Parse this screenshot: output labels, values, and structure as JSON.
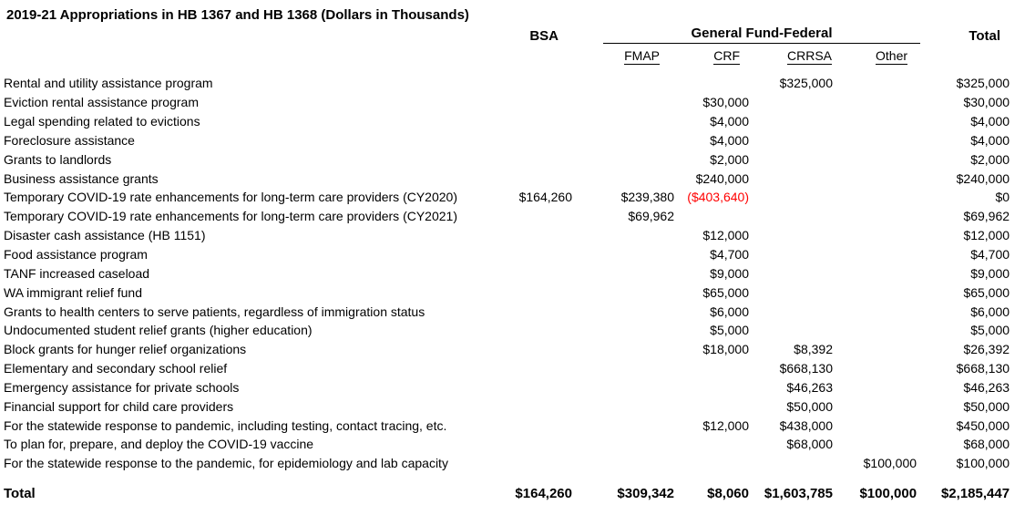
{
  "title": "2019-21 Appropriations in HB 1367 and HB 1368 (Dollars in Thousands)",
  "colors": {
    "text": "#000000",
    "negative": "#ff0000",
    "background": "#ffffff"
  },
  "table": {
    "group_header": "General Fund-Federal",
    "columns": {
      "bsa": "BSA",
      "fmap": "FMAP",
      "crf": "CRF",
      "crrsa": "CRRSA",
      "other": "Other",
      "total": "Total"
    },
    "rows": [
      {
        "label": "Rental and utility assistance program",
        "values": [
          "",
          "",
          "",
          "$325,000",
          "",
          "$325,000"
        ]
      },
      {
        "label": "Eviction rental assistance program",
        "values": [
          "",
          "",
          "$30,000",
          "",
          "",
          "$30,000"
        ]
      },
      {
        "label": "Legal spending related to evictions",
        "values": [
          "",
          "",
          "$4,000",
          "",
          "",
          "$4,000"
        ]
      },
      {
        "label": "Foreclosure assistance",
        "values": [
          "",
          "",
          "$4,000",
          "",
          "",
          "$4,000"
        ]
      },
      {
        "label": "Grants to landlords",
        "values": [
          "",
          "",
          "$2,000",
          "",
          "",
          "$2,000"
        ]
      },
      {
        "label": "Business assistance grants",
        "values": [
          "",
          "",
          "$240,000",
          "",
          "",
          "$240,000"
        ]
      },
      {
        "label": "Temporary COVID-19 rate enhancements for long-term care providers (CY2020)",
        "values": [
          "$164,260",
          "$239,380",
          "($403,640)",
          "",
          "",
          "$0"
        ]
      },
      {
        "label": "Temporary COVID-19 rate enhancements for long-term care providers (CY2021)",
        "values": [
          "",
          "$69,962",
          "",
          "",
          "",
          "$69,962"
        ]
      },
      {
        "label": "Disaster cash assistance (HB 1151)",
        "values": [
          "",
          "",
          "$12,000",
          "",
          "",
          "$12,000"
        ]
      },
      {
        "label": "Food assistance program",
        "values": [
          "",
          "",
          "$4,700",
          "",
          "",
          "$4,700"
        ]
      },
      {
        "label": "TANF increased caseload",
        "values": [
          "",
          "",
          "$9,000",
          "",
          "",
          "$9,000"
        ]
      },
      {
        "label": "WA immigrant relief fund",
        "values": [
          "",
          "",
          "$65,000",
          "",
          "",
          "$65,000"
        ]
      },
      {
        "label": "Grants to health centers to serve patients, regardless of immigration status",
        "values": [
          "",
          "",
          "$6,000",
          "",
          "",
          "$6,000"
        ]
      },
      {
        "label": "Undocumented student relief grants (higher education)",
        "values": [
          "",
          "",
          "$5,000",
          "",
          "",
          "$5,000"
        ]
      },
      {
        "label": "Block grants for hunger relief organizations",
        "values": [
          "",
          "",
          "$18,000",
          "$8,392",
          "",
          "$26,392"
        ]
      },
      {
        "label": "Elementary and secondary school relief",
        "values": [
          "",
          "",
          "",
          "$668,130",
          "",
          "$668,130"
        ]
      },
      {
        "label": "Emergency assistance for private schools",
        "values": [
          "",
          "",
          "",
          "$46,263",
          "",
          "$46,263"
        ]
      },
      {
        "label": "Financial support for child care providers",
        "values": [
          "",
          "",
          "",
          "$50,000",
          "",
          "$50,000"
        ]
      },
      {
        "label": "For the statewide response to pandemic, including testing, contact tracing, etc.",
        "values": [
          "",
          "",
          "$12,000",
          "$438,000",
          "",
          "$450,000"
        ]
      },
      {
        "label": "To plan for, prepare, and deploy the COVID-19 vaccine",
        "values": [
          "",
          "",
          "",
          "$68,000",
          "",
          "$68,000"
        ]
      },
      {
        "label": "For the statewide response to the pandemic, for epidemiology and lab capacity",
        "values": [
          "",
          "",
          "",
          "",
          "$100,000",
          "$100,000"
        ]
      }
    ],
    "total_row": {
      "label": "Total",
      "values": [
        "$164,260",
        "$309,342",
        "$8,060",
        "$1,603,785",
        "$100,000",
        "$2,185,447"
      ]
    }
  }
}
